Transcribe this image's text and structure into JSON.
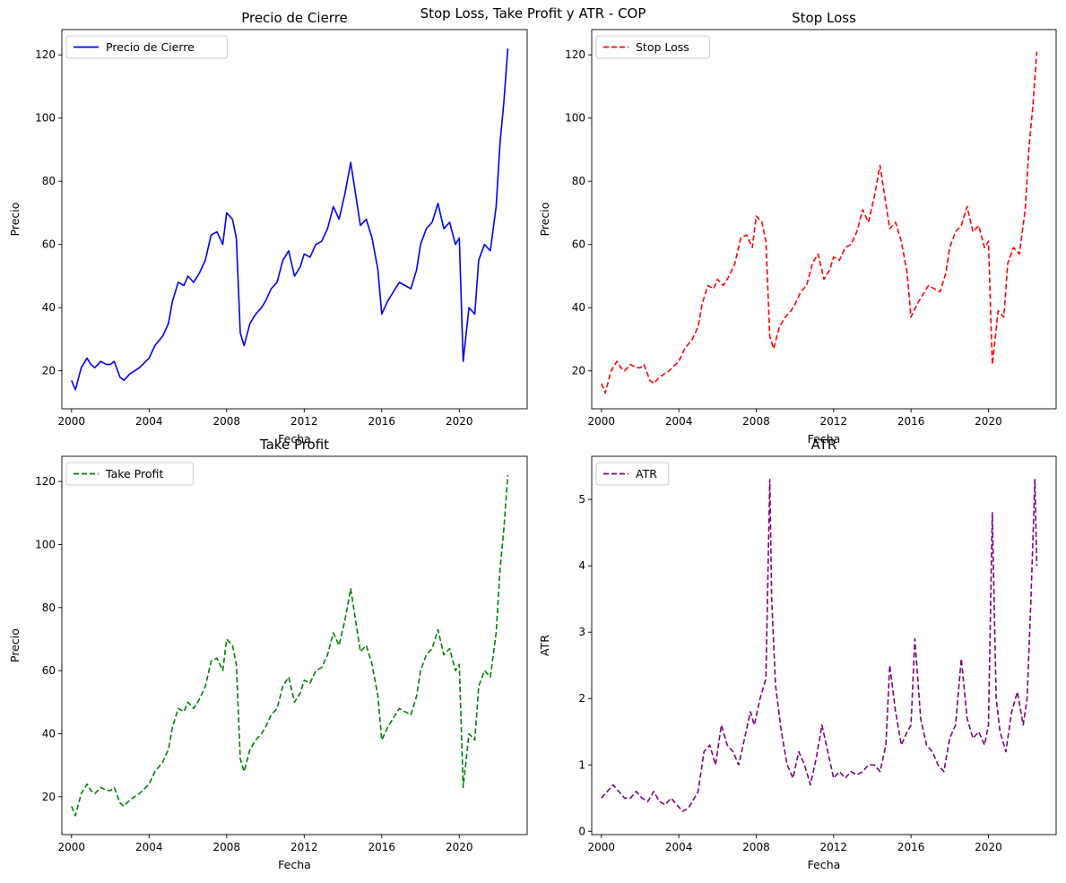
{
  "figure": {
    "suptitle": "Stop Loss, Take Profit y ATR - COP"
  },
  "chart_data": [
    {
      "type": "line",
      "title": "Precio de Cierre",
      "xlabel": "Fecha",
      "ylabel": "Precio",
      "xlim": [
        1999.5,
        2023.5
      ],
      "ylim": [
        8,
        128
      ],
      "xticks": [
        2000,
        2004,
        2008,
        2012,
        2016,
        2020
      ],
      "xtick_labels": [
        "2000",
        "2004",
        "2008",
        "2012",
        "2016",
        "2020"
      ],
      "yticks": [
        20,
        40,
        60,
        80,
        100,
        120
      ],
      "legend": "upper-left",
      "grid": false,
      "series": [
        {
          "name": "Precio de Cierre",
          "color": "#0000ff",
          "dash": "solid",
          "x": [
            2000.0,
            2000.2,
            2000.5,
            2000.8,
            2001.0,
            2001.2,
            2001.5,
            2001.8,
            2002.0,
            2002.2,
            2002.5,
            2002.7,
            2003.0,
            2003.5,
            2004.0,
            2004.3,
            2004.7,
            2005.0,
            2005.2,
            2005.5,
            2005.8,
            2006.0,
            2006.3,
            2006.6,
            2006.9,
            2007.2,
            2007.5,
            2007.8,
            2008.0,
            2008.3,
            2008.5,
            2008.7,
            2008.9,
            2009.2,
            2009.5,
            2009.8,
            2010.0,
            2010.3,
            2010.6,
            2010.9,
            2011.2,
            2011.5,
            2011.8,
            2012.0,
            2012.3,
            2012.6,
            2012.9,
            2013.2,
            2013.5,
            2013.8,
            2014.1,
            2014.4,
            2014.6,
            2014.9,
            2015.2,
            2015.5,
            2015.8,
            2016.0,
            2016.3,
            2016.6,
            2016.9,
            2017.2,
            2017.5,
            2017.8,
            2018.0,
            2018.3,
            2018.6,
            2018.9,
            2019.2,
            2019.5,
            2019.8,
            2020.0,
            2020.2,
            2020.5,
            2020.8,
            2021.0,
            2021.3,
            2021.6,
            2021.9,
            2022.1,
            2022.3,
            2022.5
          ],
          "y": [
            17,
            14,
            21,
            24,
            22,
            21,
            23,
            22,
            22,
            23,
            18,
            17,
            19,
            21,
            24,
            28,
            31,
            35,
            42,
            48,
            47,
            50,
            48,
            51,
            55,
            63,
            64,
            60,
            70,
            68,
            62,
            32,
            28,
            35,
            38,
            40,
            42,
            46,
            48,
            55,
            58,
            50,
            53,
            57,
            56,
            60,
            61,
            65,
            72,
            68,
            76,
            86,
            78,
            66,
            68,
            62,
            52,
            38,
            42,
            45,
            48,
            47,
            46,
            52,
            60,
            65,
            67,
            73,
            65,
            67,
            60,
            62,
            23,
            40,
            38,
            55,
            60,
            58,
            72,
            92,
            105,
            122
          ]
        }
      ]
    },
    {
      "type": "line",
      "title": "Stop Loss",
      "xlabel": "Fecha",
      "ylabel": "Precio",
      "xlim": [
        1999.5,
        2023.5
      ],
      "ylim": [
        8,
        128
      ],
      "xticks": [
        2000,
        2004,
        2008,
        2012,
        2016,
        2020
      ],
      "xtick_labels": [
        "2000",
        "2004",
        "2008",
        "2012",
        "2016",
        "2020"
      ],
      "yticks": [
        20,
        40,
        60,
        80,
        100,
        120
      ],
      "legend": "upper-left",
      "grid": false,
      "series": [
        {
          "name": "Stop Loss",
          "color": "#ff0000",
          "dash": "dashed",
          "x": [
            2000.0,
            2000.2,
            2000.5,
            2000.8,
            2001.0,
            2001.2,
            2001.5,
            2001.8,
            2002.0,
            2002.2,
            2002.5,
            2002.7,
            2003.0,
            2003.5,
            2004.0,
            2004.3,
            2004.7,
            2005.0,
            2005.2,
            2005.5,
            2005.8,
            2006.0,
            2006.3,
            2006.6,
            2006.9,
            2007.2,
            2007.5,
            2007.8,
            2008.0,
            2008.3,
            2008.5,
            2008.7,
            2008.9,
            2009.2,
            2009.5,
            2009.8,
            2010.0,
            2010.3,
            2010.6,
            2010.9,
            2011.2,
            2011.5,
            2011.8,
            2012.0,
            2012.3,
            2012.6,
            2012.9,
            2013.2,
            2013.5,
            2013.8,
            2014.1,
            2014.4,
            2014.6,
            2014.9,
            2015.2,
            2015.5,
            2015.8,
            2016.0,
            2016.3,
            2016.6,
            2016.9,
            2017.2,
            2017.5,
            2017.8,
            2018.0,
            2018.3,
            2018.6,
            2018.9,
            2019.2,
            2019.5,
            2019.8,
            2020.0,
            2020.2,
            2020.5,
            2020.8,
            2021.0,
            2021.3,
            2021.6,
            2021.9,
            2022.1,
            2022.3,
            2022.5
          ],
          "y": [
            16,
            13,
            20,
            23,
            21,
            20,
            22,
            21,
            21,
            22,
            17,
            16,
            18,
            20,
            23,
            27,
            30,
            34,
            41,
            47,
            46,
            49,
            47,
            50,
            54,
            62,
            63,
            59,
            69,
            67,
            61,
            31,
            27,
            34,
            37,
            39,
            41,
            45,
            47,
            54,
            57,
            49,
            52,
            56,
            55,
            59,
            60,
            64,
            71,
            67,
            75,
            85,
            77,
            65,
            67,
            61,
            51,
            37,
            41,
            44,
            47,
            46,
            45,
            51,
            59,
            64,
            66,
            72,
            64,
            66,
            59,
            61,
            22,
            39,
            37,
            54,
            59,
            57,
            71,
            91,
            104,
            121
          ]
        }
      ]
    },
    {
      "type": "line",
      "title": "Take Profit",
      "xlabel": "Fecha",
      "ylabel": "Precio",
      "xlim": [
        1999.5,
        2023.5
      ],
      "ylim": [
        8,
        128
      ],
      "xticks": [
        2000,
        2004,
        2008,
        2012,
        2016,
        2020
      ],
      "xtick_labels": [
        "2000",
        "2004",
        "2008",
        "2012",
        "2016",
        "2020"
      ],
      "yticks": [
        20,
        40,
        60,
        80,
        100,
        120
      ],
      "legend": "upper-left",
      "grid": false,
      "series": [
        {
          "name": "Take Profit",
          "color": "#008000",
          "dash": "dashed",
          "x": [
            2000.0,
            2000.2,
            2000.5,
            2000.8,
            2001.0,
            2001.2,
            2001.5,
            2001.8,
            2002.0,
            2002.2,
            2002.5,
            2002.7,
            2003.0,
            2003.5,
            2004.0,
            2004.3,
            2004.7,
            2005.0,
            2005.2,
            2005.5,
            2005.8,
            2006.0,
            2006.3,
            2006.6,
            2006.9,
            2007.2,
            2007.5,
            2007.8,
            2008.0,
            2008.3,
            2008.5,
            2008.7,
            2008.9,
            2009.2,
            2009.5,
            2009.8,
            2010.0,
            2010.3,
            2010.6,
            2010.9,
            2011.2,
            2011.5,
            2011.8,
            2012.0,
            2012.3,
            2012.6,
            2012.9,
            2013.2,
            2013.5,
            2013.8,
            2014.1,
            2014.4,
            2014.6,
            2014.9,
            2015.2,
            2015.5,
            2015.8,
            2016.0,
            2016.3,
            2016.6,
            2016.9,
            2017.2,
            2017.5,
            2017.8,
            2018.0,
            2018.3,
            2018.6,
            2018.9,
            2019.2,
            2019.5,
            2019.8,
            2020.0,
            2020.2,
            2020.5,
            2020.8,
            2021.0,
            2021.3,
            2021.6,
            2021.9,
            2022.1,
            2022.3,
            2022.5
          ],
          "y": [
            17,
            14,
            21,
            24,
            22,
            21,
            23,
            22,
            22,
            23,
            18,
            17,
            19,
            21,
            24,
            28,
            31,
            35,
            42,
            48,
            47,
            50,
            48,
            51,
            55,
            63,
            64,
            60,
            70,
            68,
            62,
            32,
            28,
            35,
            38,
            40,
            42,
            46,
            48,
            55,
            58,
            50,
            53,
            57,
            56,
            60,
            61,
            65,
            72,
            68,
            76,
            86,
            78,
            66,
            68,
            62,
            52,
            38,
            42,
            45,
            48,
            47,
            46,
            52,
            60,
            65,
            67,
            73,
            65,
            67,
            60,
            62,
            23,
            40,
            38,
            55,
            60,
            58,
            72,
            92,
            105,
            122
          ]
        }
      ]
    },
    {
      "type": "line",
      "title": "ATR",
      "xlabel": "Fecha",
      "ylabel": "ATR",
      "xlim": [
        1999.5,
        2023.5
      ],
      "ylim": [
        -0.05,
        5.65
      ],
      "xticks": [
        2000,
        2004,
        2008,
        2012,
        2016,
        2020
      ],
      "xtick_labels": [
        "2000",
        "2004",
        "2008",
        "2012",
        "2016",
        "2020"
      ],
      "yticks": [
        0,
        1,
        2,
        3,
        4,
        5
      ],
      "legend": "upper-left",
      "grid": false,
      "series": [
        {
          "name": "ATR",
          "color": "#800080",
          "dash": "dashed",
          "x": [
            2000.0,
            2000.3,
            2000.6,
            2000.9,
            2001.2,
            2001.5,
            2001.8,
            2002.1,
            2002.4,
            2002.7,
            2003.0,
            2003.3,
            2003.6,
            2003.9,
            2004.2,
            2004.5,
            2004.8,
            2005.0,
            2005.3,
            2005.6,
            2005.9,
            2006.2,
            2006.5,
            2006.8,
            2007.1,
            2007.4,
            2007.7,
            2007.9,
            2008.2,
            2008.5,
            2008.7,
            2008.8,
            2009.0,
            2009.3,
            2009.6,
            2009.9,
            2010.2,
            2010.5,
            2010.8,
            2011.1,
            2011.4,
            2011.7,
            2012.0,
            2012.3,
            2012.6,
            2012.9,
            2013.2,
            2013.5,
            2013.8,
            2014.1,
            2014.4,
            2014.7,
            2014.9,
            2015.2,
            2015.5,
            2015.8,
            2016.0,
            2016.2,
            2016.5,
            2016.8,
            2017.1,
            2017.4,
            2017.7,
            2018.0,
            2018.3,
            2018.6,
            2018.9,
            2019.2,
            2019.5,
            2019.8,
            2020.0,
            2020.2,
            2020.4,
            2020.6,
            2020.9,
            2021.2,
            2021.5,
            2021.8,
            2022.0,
            2022.2,
            2022.4,
            2022.5
          ],
          "y": [
            0.5,
            0.6,
            0.7,
            0.6,
            0.5,
            0.5,
            0.6,
            0.5,
            0.45,
            0.6,
            0.45,
            0.4,
            0.5,
            0.4,
            0.3,
            0.35,
            0.5,
            0.6,
            1.2,
            1.3,
            1.0,
            1.6,
            1.3,
            1.2,
            1.0,
            1.4,
            1.8,
            1.6,
            2.0,
            2.3,
            5.3,
            3.5,
            2.2,
            1.5,
            1.0,
            0.8,
            1.2,
            1.0,
            0.7,
            1.1,
            1.6,
            1.2,
            0.8,
            0.9,
            0.8,
            0.9,
            0.85,
            0.9,
            1.0,
            1.0,
            0.9,
            1.3,
            2.5,
            1.8,
            1.3,
            1.5,
            1.6,
            2.9,
            1.7,
            1.3,
            1.2,
            1.0,
            0.9,
            1.4,
            1.6,
            2.6,
            1.7,
            1.4,
            1.5,
            1.3,
            1.6,
            4.8,
            2.0,
            1.5,
            1.2,
            1.8,
            2.1,
            1.6,
            2.0,
            3.5,
            5.3,
            4.0
          ]
        }
      ]
    }
  ]
}
